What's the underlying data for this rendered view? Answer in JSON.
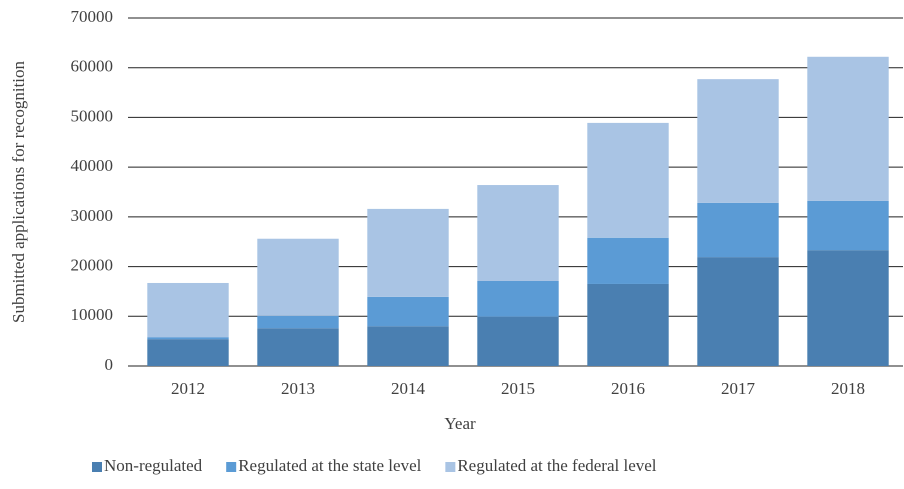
{
  "chart_data": {
    "type": "stacked_bar",
    "x_label": "Year",
    "y_label": "Submitted applications for recognition",
    "categories": [
      "2012",
      "2013",
      "2014",
      "2015",
      "2016",
      "2017",
      "2018"
    ],
    "series": [
      {
        "name": "Non-regulated",
        "color": "#4a7fb1",
        "values": [
          5400,
          7600,
          8000,
          9900,
          16500,
          21900,
          23300
        ]
      },
      {
        "name": "Regulated at the state level",
        "color": "#5b9bd5",
        "values": [
          400,
          2500,
          5900,
          7200,
          9300,
          10900,
          9900
        ]
      },
      {
        "name": "Regulated at the federal level",
        "color": "#a9c4e4",
        "values": [
          10900,
          15500,
          17700,
          19300,
          23100,
          24900,
          29000
        ]
      }
    ],
    "ylim": [
      0,
      70000
    ],
    "yticks": [
      0,
      10000,
      20000,
      30000,
      40000,
      50000,
      60000,
      70000
    ],
    "grid": true,
    "legend": "bottom"
  }
}
